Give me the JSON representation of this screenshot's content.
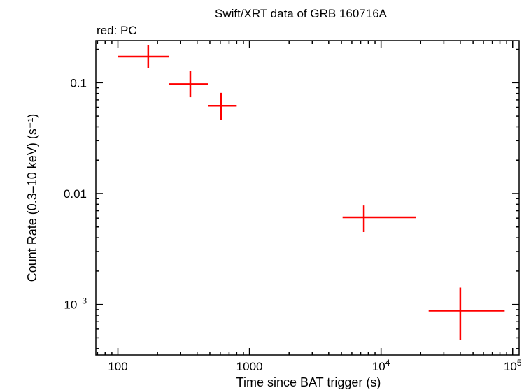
{
  "chart_data": {
    "type": "scatter",
    "title": "Swift/XRT data of GRB 160716A",
    "subtitle": "red: PC",
    "xlabel": "Time since BAT trigger (s)",
    "ylabel": "Count Rate (0.3–10 keV) (s⁻¹)",
    "xscale": "log",
    "yscale": "log",
    "xlim": [
      68,
      112000
    ],
    "ylim": [
      0.00035,
      0.24
    ],
    "grid": false,
    "x_ticks": [
      {
        "value": 100,
        "label": "100"
      },
      {
        "value": 1000,
        "label": "1000"
      },
      {
        "value": 10000,
        "base": "10",
        "exp": "4"
      },
      {
        "value": 100000,
        "base": "10",
        "exp": "5"
      }
    ],
    "y_ticks": [
      {
        "value": 0.1,
        "label": "0.1"
      },
      {
        "value": 0.01,
        "label": "0.01"
      },
      {
        "value": 0.001,
        "base": "10",
        "exp": "−3"
      }
    ],
    "series": [
      {
        "color": "#ff0000",
        "points": [
          {
            "x": 170,
            "x_lo": 100,
            "x_hi": 245,
            "y": 0.172,
            "y_lo": 0.135,
            "y_hi": 0.218
          },
          {
            "x": 355,
            "x_lo": 245,
            "x_hi": 485,
            "y": 0.097,
            "y_lo": 0.074,
            "y_hi": 0.127
          },
          {
            "x": 610,
            "x_lo": 485,
            "x_hi": 800,
            "y": 0.062,
            "y_lo": 0.046,
            "y_hi": 0.081
          },
          {
            "x": 7400,
            "x_lo": 5100,
            "x_hi": 18500,
            "y": 0.0061,
            "y_lo": 0.0045,
            "y_hi": 0.0078
          },
          {
            "x": 40000,
            "x_lo": 23000,
            "x_hi": 87000,
            "y": 0.00088,
            "y_lo": 0.00048,
            "y_hi": 0.00142
          }
        ]
      }
    ]
  }
}
